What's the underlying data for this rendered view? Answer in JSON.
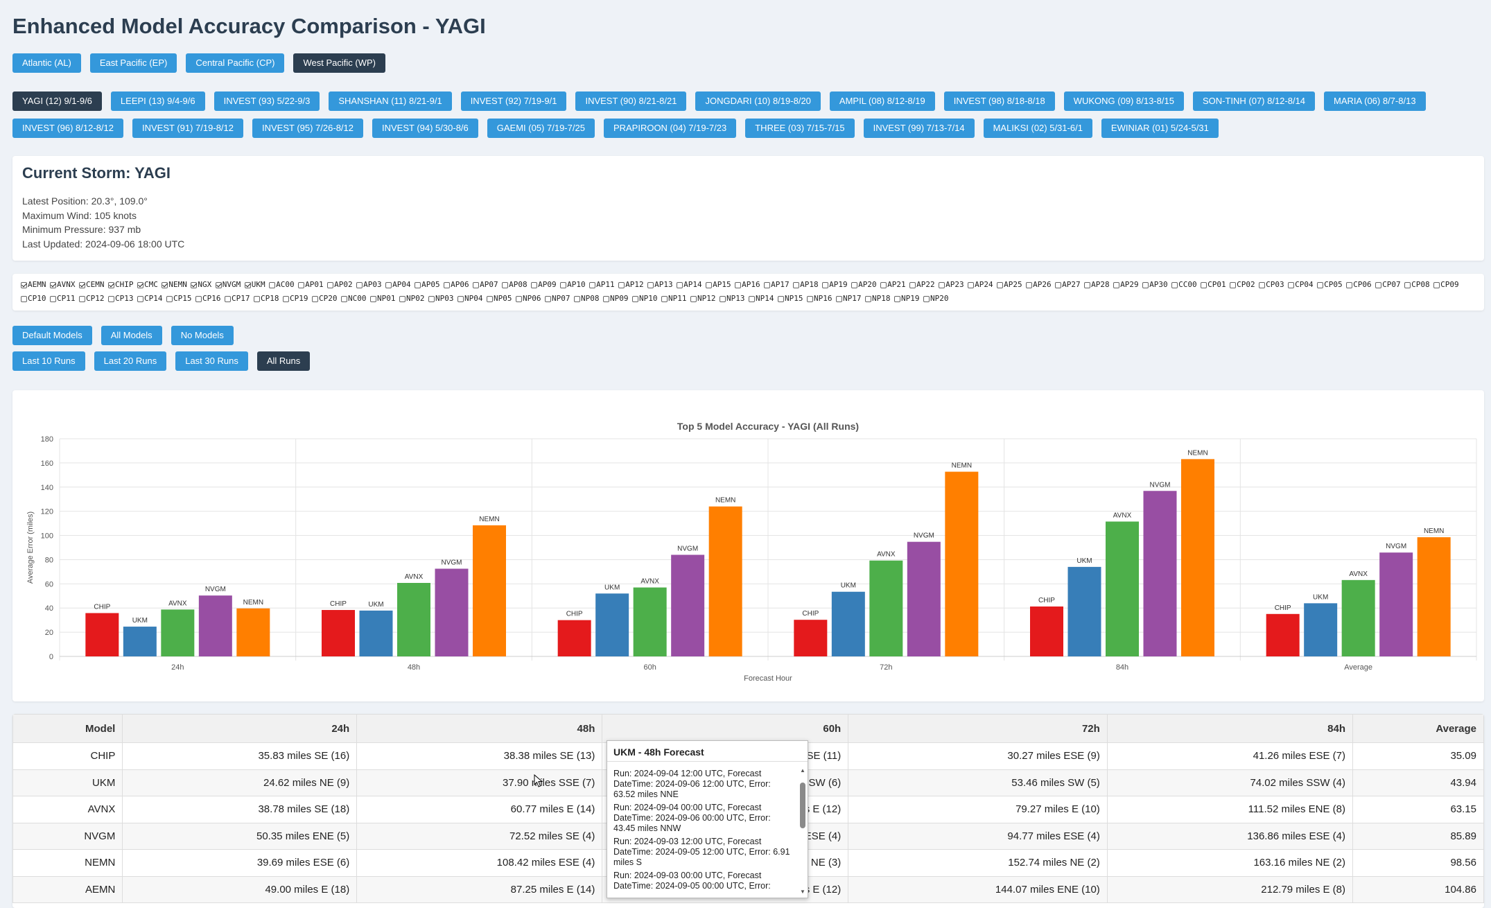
{
  "title": "Enhanced Model Accuracy Comparison - YAGI",
  "basins": [
    {
      "label": "Atlantic (AL)",
      "active": false
    },
    {
      "label": "East Pacific (EP)",
      "active": false
    },
    {
      "label": "Central Pacific (CP)",
      "active": false
    },
    {
      "label": "West Pacific (WP)",
      "active": true
    }
  ],
  "storms": [
    {
      "label": "YAGI (12) 9/1-9/6",
      "active": true
    },
    {
      "label": "LEEPI (13) 9/4-9/6",
      "active": false
    },
    {
      "label": "INVEST (93) 5/22-9/3",
      "active": false
    },
    {
      "label": "SHANSHAN (11) 8/21-9/1",
      "active": false
    },
    {
      "label": "INVEST (92) 7/19-9/1",
      "active": false
    },
    {
      "label": "INVEST (90) 8/21-8/21",
      "active": false
    },
    {
      "label": "JONGDARI (10) 8/19-8/20",
      "active": false
    },
    {
      "label": "AMPIL (08) 8/12-8/19",
      "active": false
    },
    {
      "label": "INVEST (98) 8/18-8/18",
      "active": false
    },
    {
      "label": "WUKONG (09) 8/13-8/15",
      "active": false
    },
    {
      "label": "SON-TINH (07) 8/12-8/14",
      "active": false
    },
    {
      "label": "MARIA (06) 8/7-8/13",
      "active": false
    },
    {
      "label": "INVEST (96) 8/12-8/12",
      "active": false
    },
    {
      "label": "INVEST (91) 7/19-8/12",
      "active": false
    },
    {
      "label": "INVEST (95) 7/26-8/12",
      "active": false
    },
    {
      "label": "INVEST (94) 5/30-8/6",
      "active": false
    },
    {
      "label": "GAEMI (05) 7/19-7/25",
      "active": false
    },
    {
      "label": "PRAPIROON (04) 7/19-7/23",
      "active": false
    },
    {
      "label": "THREE (03) 7/15-7/15",
      "active": false
    },
    {
      "label": "INVEST (99) 7/13-7/14",
      "active": false
    },
    {
      "label": "MALIKSI (02) 5/31-6/1",
      "active": false
    },
    {
      "label": "EWINIAR (01) 5/24-5/31",
      "active": false
    }
  ],
  "current_storm": {
    "heading": "Current Storm: YAGI",
    "position": "Latest Position: 20.3°, 109.0°",
    "wind": "Maximum Wind: 105 knots",
    "pressure": "Minimum Pressure: 937 mb",
    "updated": "Last Updated: 2024-09-06 18:00 UTC"
  },
  "model_checkboxes": [
    {
      "label": "AEMN",
      "checked": true
    },
    {
      "label": "AVNX",
      "checked": true
    },
    {
      "label": "CEMN",
      "checked": true
    },
    {
      "label": "CHIP",
      "checked": true
    },
    {
      "label": "CMC",
      "checked": true
    },
    {
      "label": "NEMN",
      "checked": true
    },
    {
      "label": "NGX",
      "checked": true
    },
    {
      "label": "NVGM",
      "checked": true
    },
    {
      "label": "UKM",
      "checked": true
    },
    {
      "label": "AC00",
      "checked": false
    },
    {
      "label": "AP01",
      "checked": false
    },
    {
      "label": "AP02",
      "checked": false
    },
    {
      "label": "AP03",
      "checked": false
    },
    {
      "label": "AP04",
      "checked": false
    },
    {
      "label": "AP05",
      "checked": false
    },
    {
      "label": "AP06",
      "checked": false
    },
    {
      "label": "AP07",
      "checked": false
    },
    {
      "label": "AP08",
      "checked": false
    },
    {
      "label": "AP09",
      "checked": false
    },
    {
      "label": "AP10",
      "checked": false
    },
    {
      "label": "AP11",
      "checked": false
    },
    {
      "label": "AP12",
      "checked": false
    },
    {
      "label": "AP13",
      "checked": false
    },
    {
      "label": "AP14",
      "checked": false
    },
    {
      "label": "AP15",
      "checked": false
    },
    {
      "label": "AP16",
      "checked": false
    },
    {
      "label": "AP17",
      "checked": false
    },
    {
      "label": "AP18",
      "checked": false
    },
    {
      "label": "AP19",
      "checked": false
    },
    {
      "label": "AP20",
      "checked": false
    },
    {
      "label": "AP21",
      "checked": false
    },
    {
      "label": "AP22",
      "checked": false
    },
    {
      "label": "AP23",
      "checked": false
    },
    {
      "label": "AP24",
      "checked": false
    },
    {
      "label": "AP25",
      "checked": false
    },
    {
      "label": "AP26",
      "checked": false
    },
    {
      "label": "AP27",
      "checked": false
    },
    {
      "label": "AP28",
      "checked": false
    },
    {
      "label": "AP29",
      "checked": false
    },
    {
      "label": "AP30",
      "checked": false
    },
    {
      "label": "CC00",
      "checked": false
    },
    {
      "label": "CP01",
      "checked": false
    },
    {
      "label": "CP02",
      "checked": false
    },
    {
      "label": "CP03",
      "checked": false
    },
    {
      "label": "CP04",
      "checked": false
    },
    {
      "label": "CP05",
      "checked": false
    },
    {
      "label": "CP06",
      "checked": false
    },
    {
      "label": "CP07",
      "checked": false
    },
    {
      "label": "CP08",
      "checked": false
    },
    {
      "label": "CP09",
      "checked": false
    },
    {
      "label": "CP10",
      "checked": false
    },
    {
      "label": "CP11",
      "checked": false
    },
    {
      "label": "CP12",
      "checked": false
    },
    {
      "label": "CP13",
      "checked": false
    },
    {
      "label": "CP14",
      "checked": false
    },
    {
      "label": "CP15",
      "checked": false
    },
    {
      "label": "CP16",
      "checked": false
    },
    {
      "label": "CP17",
      "checked": false
    },
    {
      "label": "CP18",
      "checked": false
    },
    {
      "label": "CP19",
      "checked": false
    },
    {
      "label": "CP20",
      "checked": false
    },
    {
      "label": "NC00",
      "checked": false
    },
    {
      "label": "NP01",
      "checked": false
    },
    {
      "label": "NP02",
      "checked": false
    },
    {
      "label": "NP03",
      "checked": false
    },
    {
      "label": "NP04",
      "checked": false
    },
    {
      "label": "NP05",
      "checked": false
    },
    {
      "label": "NP06",
      "checked": false
    },
    {
      "label": "NP07",
      "checked": false
    },
    {
      "label": "NP08",
      "checked": false
    },
    {
      "label": "NP09",
      "checked": false
    },
    {
      "label": "NP10",
      "checked": false
    },
    {
      "label": "NP11",
      "checked": false
    },
    {
      "label": "NP12",
      "checked": false
    },
    {
      "label": "NP13",
      "checked": false
    },
    {
      "label": "NP14",
      "checked": false
    },
    {
      "label": "NP15",
      "checked": false
    },
    {
      "label": "NP16",
      "checked": false
    },
    {
      "label": "NP17",
      "checked": false
    },
    {
      "label": "NP18",
      "checked": false
    },
    {
      "label": "NP19",
      "checked": false
    },
    {
      "label": "NP20",
      "checked": false
    }
  ],
  "model_buttons": [
    {
      "label": "Default Models",
      "active": false
    },
    {
      "label": "All Models",
      "active": false
    },
    {
      "label": "No Models",
      "active": false
    }
  ],
  "run_buttons": [
    {
      "label": "Last 10 Runs",
      "active": false
    },
    {
      "label": "Last 20 Runs",
      "active": false
    },
    {
      "label": "Last 30 Runs",
      "active": false
    },
    {
      "label": "All Runs",
      "active": true
    }
  ],
  "chart_data": {
    "type": "bar",
    "title": "Top 5 Model Accuracy - YAGI (All Runs)",
    "xlabel": "Forecast Hour",
    "ylabel": "Average Error (miles)",
    "ylim": [
      0,
      180
    ],
    "yticks": [
      0,
      20,
      40,
      60,
      80,
      100,
      120,
      140,
      160,
      180
    ],
    "grid": true,
    "categories": [
      "24h",
      "48h",
      "60h",
      "72h",
      "84h",
      "Average"
    ],
    "series": [
      {
        "name": "CHIP",
        "color": "#e41a1c",
        "values": [
          35.83,
          38.38,
          30,
          30.27,
          41.26,
          35.09
        ]
      },
      {
        "name": "UKM",
        "color": "#377eb8",
        "values": [
          24.62,
          37.9,
          52,
          53.46,
          74.02,
          43.94
        ]
      },
      {
        "name": "AVNX",
        "color": "#4daf4a",
        "values": [
          38.78,
          60.77,
          57,
          79.27,
          111.52,
          63.15
        ]
      },
      {
        "name": "NVGM",
        "color": "#984ea3",
        "values": [
          50.35,
          72.52,
          84,
          94.77,
          136.86,
          85.89
        ]
      },
      {
        "name": "NEMN",
        "color": "#ff7f00",
        "values": [
          39.69,
          108.42,
          124,
          152.74,
          163.16,
          98.56
        ]
      }
    ]
  },
  "table": {
    "headers": [
      "Model",
      "24h",
      "48h",
      "60h",
      "72h",
      "84h",
      "Average"
    ],
    "rows": [
      [
        "CHIP",
        "35.83 miles SE (16)",
        "38.38 miles SE (13)",
        "SE (11)",
        "30.27 miles ESE (9)",
        "41.26 miles ESE (7)",
        "35.09"
      ],
      [
        "UKM",
        "24.62 miles NE (9)",
        "37.90 miles SSE (7)",
        "SW (6)",
        "53.46 miles SW (5)",
        "74.02 miles SSW (4)",
        "43.94"
      ],
      [
        "AVNX",
        "38.78 miles SE (18)",
        "60.77 miles E (14)",
        "s E (12)",
        "79.27 miles E (10)",
        "111.52 miles ENE (8)",
        "63.15"
      ],
      [
        "NVGM",
        "50.35 miles ENE (5)",
        "72.52 miles SE (4)",
        "ESE (4)",
        "94.77 miles ESE (4)",
        "136.86 miles ESE (4)",
        "85.89"
      ],
      [
        "NEMN",
        "39.69 miles ESE (6)",
        "108.42 miles ESE (4)",
        "NE (3)",
        "152.74 miles NE (2)",
        "163.16 miles NE (2)",
        "98.56"
      ],
      [
        "AEMN",
        "49.00 miles E (18)",
        "87.25 miles E (14)",
        "s E (12)",
        "144.07 miles ENE (10)",
        "212.79 miles E (8)",
        "104.86"
      ]
    ]
  },
  "tooltip": {
    "title": "UKM - 48h Forecast",
    "entries": [
      "Run: 2024-09-04 12:00 UTC, Forecast DateTime: 2024-09-06 12:00 UTC, Error: 63.52 miles NNE",
      "Run: 2024-09-04 00:00 UTC, Forecast DateTime: 2024-09-06 00:00 UTC, Error: 43.45 miles NNW",
      "Run: 2024-09-03 12:00 UTC, Forecast DateTime: 2024-09-05 12:00 UTC, Error: 6.91 miles S",
      "Run: 2024-09-03 00:00 UTC, Forecast DateTime: 2024-09-05 00:00 UTC, Error:"
    ]
  }
}
